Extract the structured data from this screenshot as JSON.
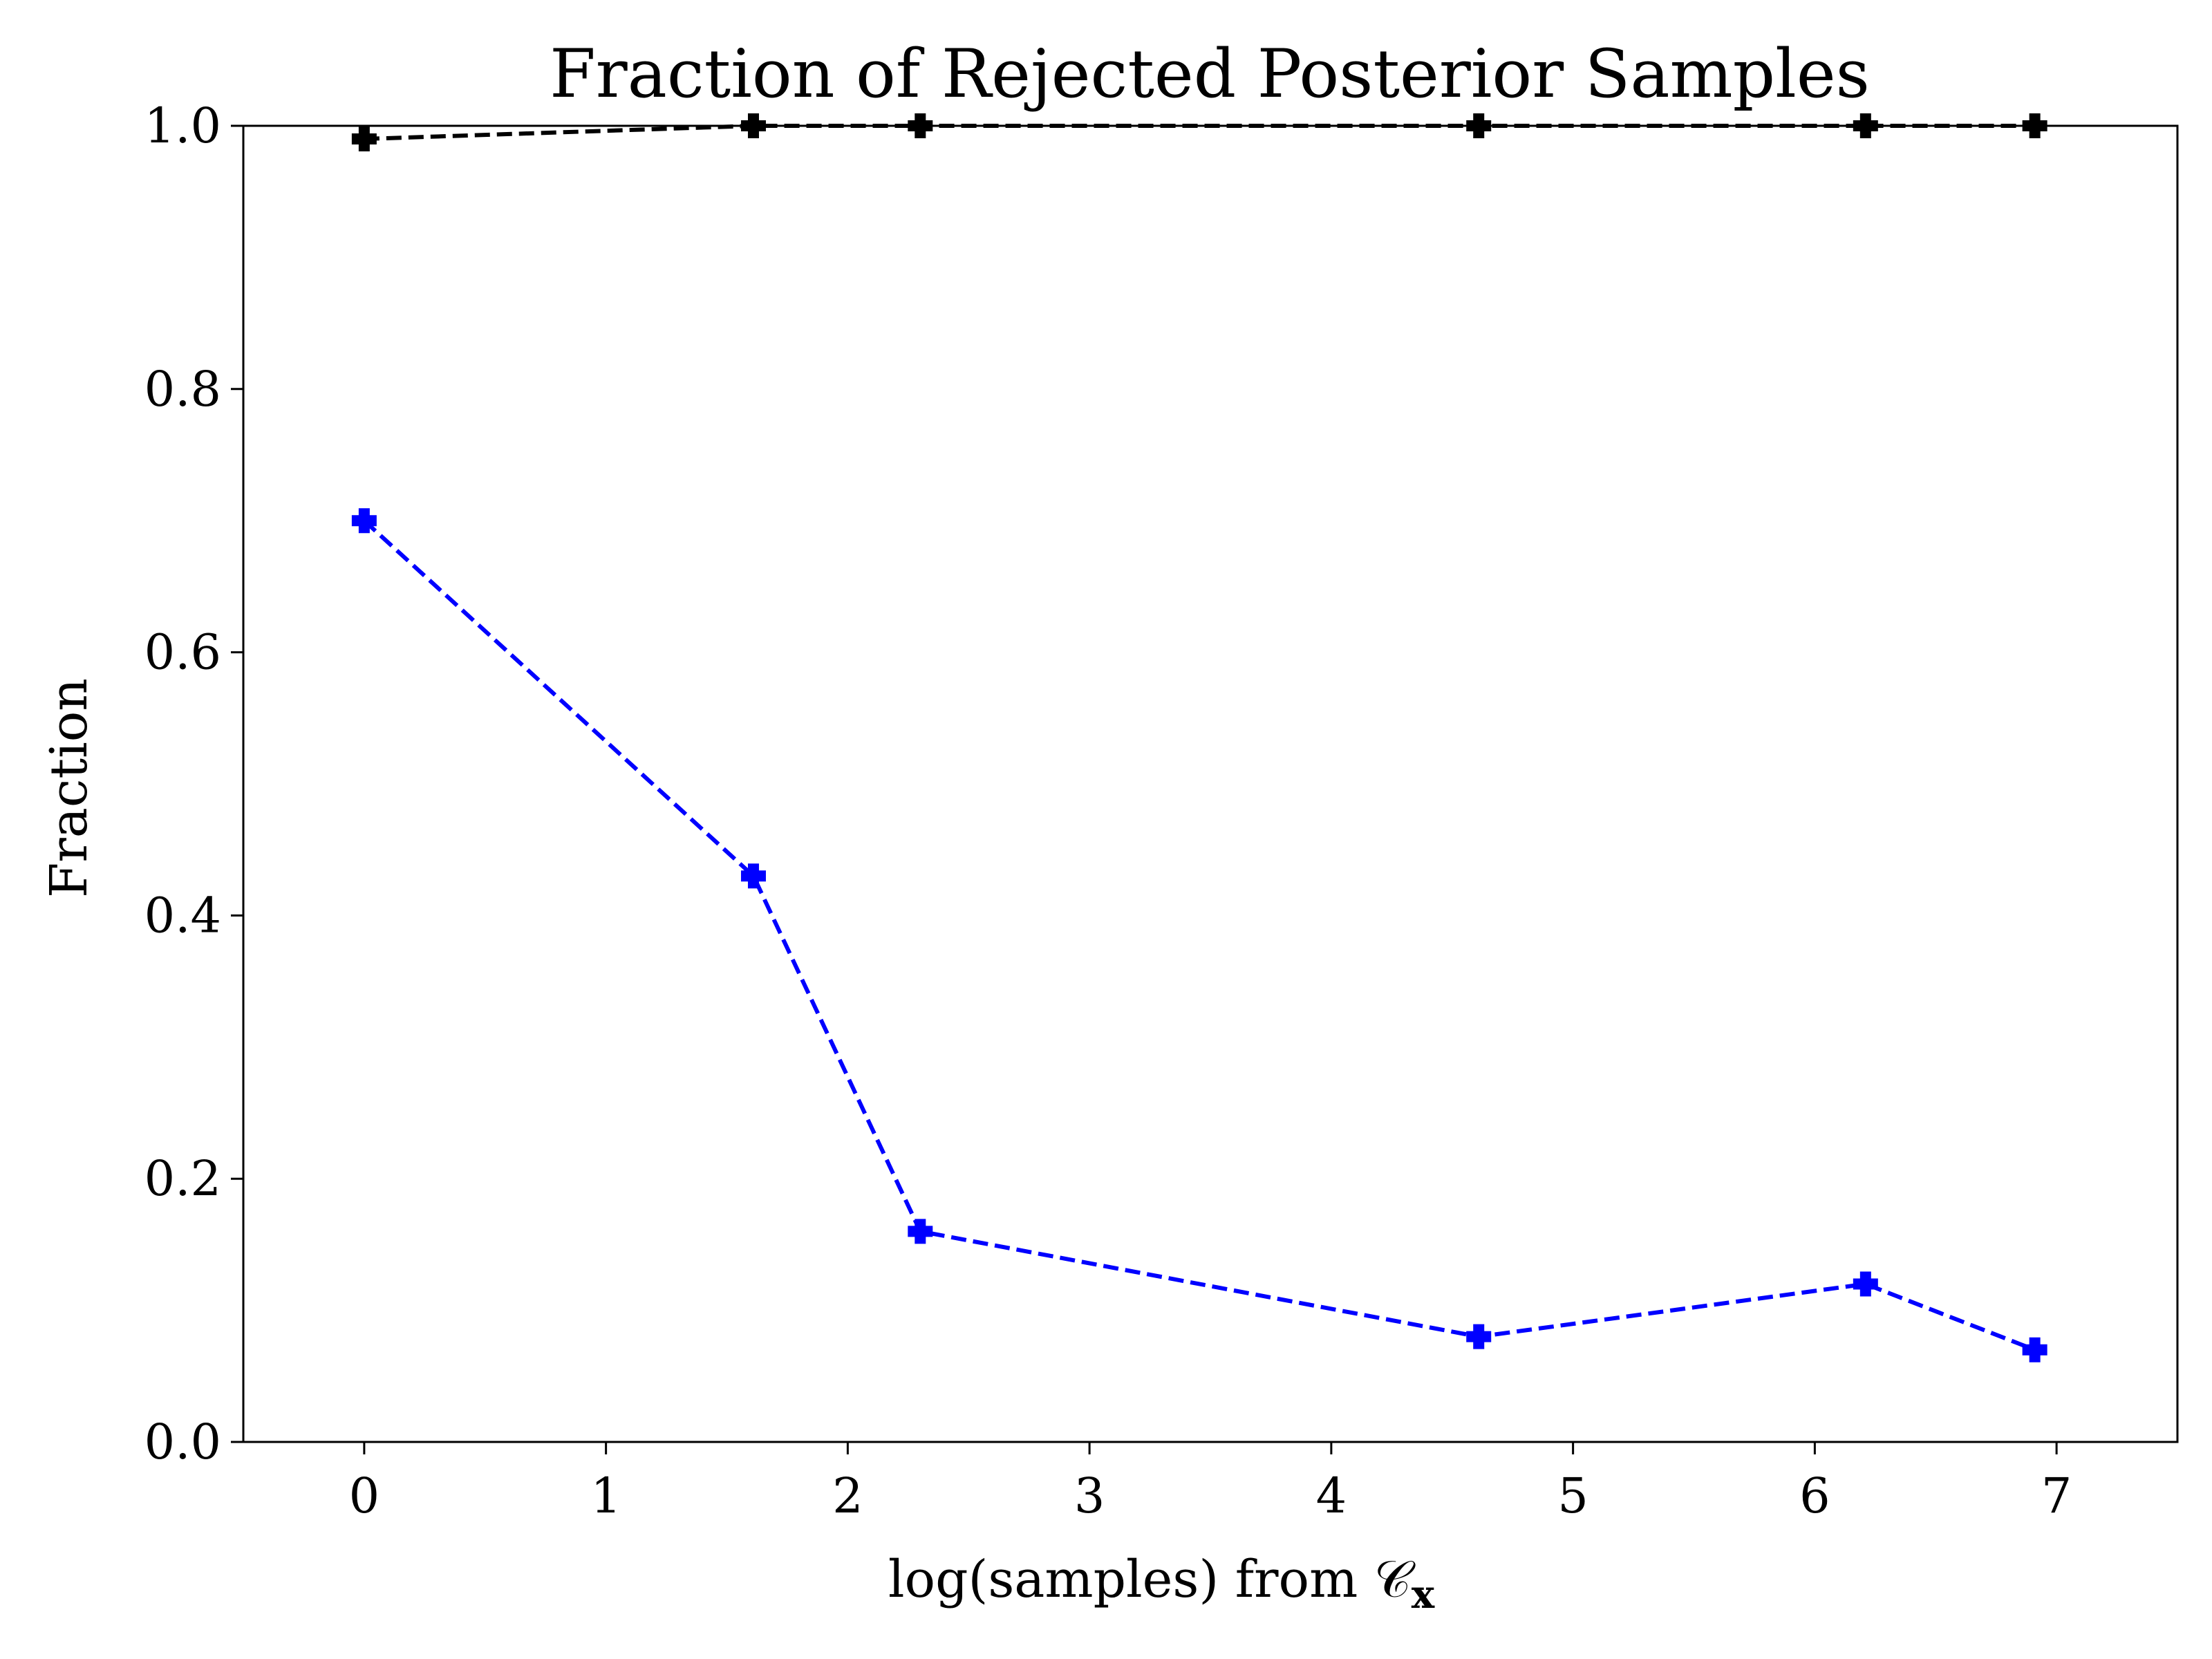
{
  "chart_data": {
    "type": "line",
    "title": "Fraction of Rejected Posterior Samples",
    "xlabel": "log(samples) from 𝒞",
    "xlabel_subscript": "x",
    "ylabel": "Fraction",
    "xlim": [
      -0.5,
      7.5
    ],
    "ylim": [
      0.0,
      1.0
    ],
    "xticks": [
      0,
      1,
      2,
      3,
      4,
      5,
      6,
      7
    ],
    "xtick_labels": [
      "0",
      "1",
      "2",
      "3",
      "4",
      "5",
      "6",
      "7"
    ],
    "yticks": [
      0.0,
      0.2,
      0.4,
      0.6,
      0.8,
      1.0
    ],
    "ytick_labels": [
      "0.0",
      "0.2",
      "0.4",
      "0.6",
      "0.8",
      "1.0"
    ],
    "grid": false,
    "series": [
      {
        "color": "#000000",
        "line_style": "dashed",
        "marker": "plus-filled",
        "x": [
          0.0,
          1.61,
          2.3,
          4.61,
          6.21,
          6.91
        ],
        "y": [
          0.99,
          1.0,
          1.0,
          1.0,
          1.0,
          1.0
        ]
      },
      {
        "color": "#0000ff",
        "line_style": "dashed",
        "marker": "plus-filled",
        "x": [
          0.0,
          1.61,
          2.3,
          4.61,
          6.21,
          6.91
        ],
        "y": [
          0.7,
          0.43,
          0.16,
          0.08,
          0.12,
          0.07
        ]
      }
    ]
  }
}
